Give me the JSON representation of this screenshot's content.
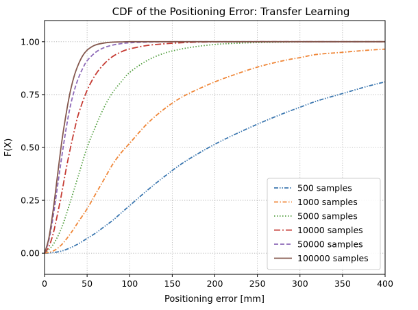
{
  "chart_data": {
    "type": "line",
    "title": "CDF of the Positioning Error: Transfer Learning",
    "xlabel": "Positioning error [mm]",
    "ylabel": "F(X)",
    "xlim": [
      0,
      400
    ],
    "ylim": [
      -0.1,
      1.1
    ],
    "xticks": [
      0,
      50,
      100,
      150,
      200,
      250,
      300,
      350,
      400
    ],
    "yticks": [
      0.0,
      0.25,
      0.5,
      0.75,
      1.0
    ],
    "ytick_labels": [
      "0.00",
      "0.25",
      "0.50",
      "0.75",
      "1.00"
    ],
    "grid": true,
    "legend_position": "lower-right",
    "series": [
      {
        "name": "500 samples",
        "color": "#3a76af",
        "dash": "dashdotdot",
        "x": [
          0,
          10,
          20,
          30,
          40,
          50,
          60,
          70,
          80,
          90,
          100,
          120,
          140,
          160,
          180,
          200,
          220,
          250,
          280,
          300,
          320,
          350,
          380,
          400
        ],
        "y": [
          0,
          0.003,
          0.01,
          0.025,
          0.045,
          0.07,
          0.095,
          0.125,
          0.155,
          0.19,
          0.225,
          0.295,
          0.36,
          0.42,
          0.47,
          0.515,
          0.555,
          0.61,
          0.66,
          0.69,
          0.72,
          0.755,
          0.79,
          0.81
        ]
      },
      {
        "name": "1000 samples",
        "color": "#ef8536",
        "dash": "dashdot",
        "x": [
          0,
          10,
          20,
          30,
          40,
          50,
          60,
          70,
          80,
          90,
          100,
          120,
          140,
          160,
          180,
          200,
          220,
          250,
          280,
          300,
          320,
          350,
          380,
          400
        ],
        "y": [
          0,
          0.01,
          0.04,
          0.09,
          0.15,
          0.21,
          0.28,
          0.35,
          0.42,
          0.475,
          0.52,
          0.61,
          0.68,
          0.735,
          0.775,
          0.81,
          0.84,
          0.88,
          0.91,
          0.925,
          0.94,
          0.95,
          0.96,
          0.965
        ]
      },
      {
        "name": "5000 samples",
        "color": "#519e3e",
        "dash": "dotted",
        "x": [
          0,
          10,
          20,
          30,
          40,
          50,
          60,
          70,
          80,
          90,
          100,
          120,
          140,
          160,
          180,
          200,
          220,
          250,
          300,
          350,
          400
        ],
        "y": [
          0,
          0.04,
          0.12,
          0.24,
          0.37,
          0.5,
          0.6,
          0.69,
          0.76,
          0.81,
          0.855,
          0.91,
          0.945,
          0.965,
          0.978,
          0.987,
          0.992,
          0.996,
          0.999,
          1.0,
          1.0
        ]
      },
      {
        "name": "10000 samples",
        "color": "#c53a32",
        "dash": "dashdot-long",
        "x": [
          0,
          5,
          10,
          15,
          20,
          25,
          30,
          35,
          40,
          50,
          60,
          70,
          80,
          90,
          100,
          120,
          140,
          160,
          180,
          200,
          250,
          300,
          400
        ],
        "y": [
          0,
          0.03,
          0.09,
          0.18,
          0.28,
          0.39,
          0.49,
          0.58,
          0.66,
          0.77,
          0.845,
          0.895,
          0.93,
          0.952,
          0.966,
          0.982,
          0.99,
          0.995,
          0.998,
          0.999,
          1.0,
          1.0,
          1.0
        ]
      },
      {
        "name": "50000 samples",
        "color": "#8d69b8",
        "dash": "dashed",
        "x": [
          0,
          5,
          10,
          15,
          20,
          25,
          30,
          35,
          40,
          45,
          50,
          60,
          70,
          80,
          90,
          100,
          120,
          150,
          200,
          300,
          400
        ],
        "y": [
          0,
          0.06,
          0.17,
          0.31,
          0.45,
          0.58,
          0.69,
          0.77,
          0.83,
          0.875,
          0.91,
          0.95,
          0.972,
          0.984,
          0.991,
          0.995,
          0.998,
          1.0,
          1.0,
          1.0,
          1.0
        ]
      },
      {
        "name": "100000 samples",
        "color": "#84584e",
        "dash": "solid",
        "x": [
          0,
          5,
          10,
          15,
          20,
          25,
          30,
          35,
          40,
          45,
          50,
          55,
          60,
          70,
          80,
          90,
          100,
          120,
          150,
          200,
          300,
          400
        ],
        "y": [
          0,
          0.07,
          0.2,
          0.36,
          0.52,
          0.65,
          0.76,
          0.84,
          0.895,
          0.935,
          0.96,
          0.975,
          0.985,
          0.994,
          0.998,
          0.999,
          1.0,
          1.0,
          1.0,
          1.0,
          1.0,
          1.0
        ]
      }
    ]
  }
}
